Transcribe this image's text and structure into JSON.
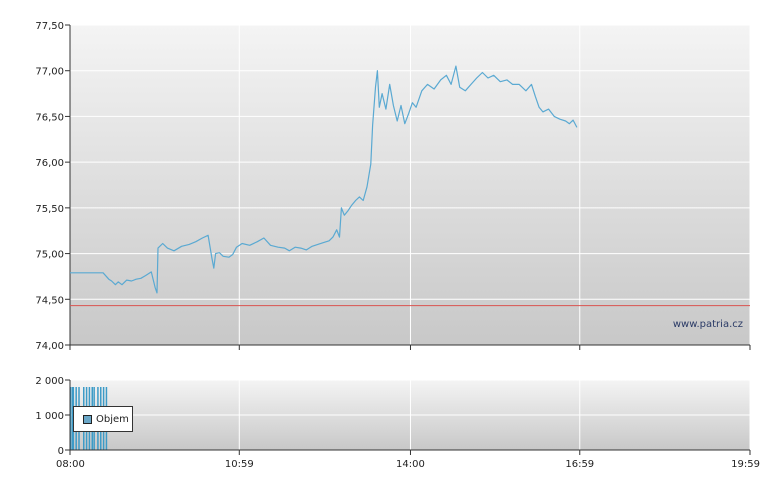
{
  "chart_data": [
    {
      "type": "line",
      "title": "",
      "xlabel": "",
      "ylabel": "",
      "ylim": [
        74.0,
        77.5
      ],
      "y_ticks": [
        "77,50",
        "77,00",
        "76,50",
        "76,00",
        "75,50",
        "75,00",
        "74,50",
        "74,00"
      ],
      "y_tick_values": [
        77.5,
        77.0,
        76.5,
        76.0,
        75.5,
        75.0,
        74.5,
        74.0
      ],
      "x_ticks": [
        "08:00",
        "10:59",
        "14:00",
        "16:59",
        "19:59"
      ],
      "x_tick_minutes": [
        480,
        659,
        840,
        1019,
        1199
      ],
      "xlim_minutes": [
        480,
        1199
      ],
      "grid": true,
      "reference_line": {
        "value": 74.43,
        "color": "#d9534f"
      },
      "watermark": "www.patria.cz",
      "line_color": "#5aa9d2",
      "series": [
        {
          "points": [
            [
              480,
              74.79
            ],
            [
              500,
              74.79
            ],
            [
              515,
              74.79
            ],
            [
              521,
              74.72
            ],
            [
              524,
              74.7
            ],
            [
              528,
              74.66
            ],
            [
              531,
              74.69
            ],
            [
              535,
              74.66
            ],
            [
              540,
              74.71
            ],
            [
              545,
              74.7
            ],
            [
              550,
              74.72
            ],
            [
              555,
              74.73
            ],
            [
              560,
              74.76
            ],
            [
              566,
              74.8
            ],
            [
              570,
              74.63
            ],
            [
              572,
              74.57
            ],
            [
              573,
              75.06
            ],
            [
              578,
              75.11
            ],
            [
              583,
              75.06
            ],
            [
              590,
              75.03
            ],
            [
              598,
              75.08
            ],
            [
              606,
              75.1
            ],
            [
              613,
              75.13
            ],
            [
              620,
              75.17
            ],
            [
              626,
              75.2
            ],
            [
              630,
              74.95
            ],
            [
              632,
              74.84
            ],
            [
              634,
              75.0
            ],
            [
              638,
              75.01
            ],
            [
              642,
              74.97
            ],
            [
              648,
              74.96
            ],
            [
              652,
              74.99
            ],
            [
              656,
              75.07
            ],
            [
              662,
              75.11
            ],
            [
              670,
              75.09
            ],
            [
              678,
              75.13
            ],
            [
              685,
              75.17
            ],
            [
              692,
              75.09
            ],
            [
              700,
              75.07
            ],
            [
              707,
              75.06
            ],
            [
              712,
              75.03
            ],
            [
              718,
              75.07
            ],
            [
              724,
              75.06
            ],
            [
              730,
              75.04
            ],
            [
              736,
              75.08
            ],
            [
              742,
              75.1
            ],
            [
              748,
              75.12
            ],
            [
              754,
              75.14
            ],
            [
              758,
              75.18
            ],
            [
              762,
              75.26
            ],
            [
              765,
              75.18
            ],
            [
              767,
              75.5
            ],
            [
              770,
              75.42
            ],
            [
              774,
              75.47
            ],
            [
              778,
              75.53
            ],
            [
              782,
              75.58
            ],
            [
              786,
              75.62
            ],
            [
              790,
              75.58
            ],
            [
              794,
              75.73
            ],
            [
              798,
              75.98
            ],
            [
              800,
              76.4
            ],
            [
              803,
              76.82
            ],
            [
              805,
              77.0
            ],
            [
              807,
              76.6
            ],
            [
              810,
              76.75
            ],
            [
              814,
              76.58
            ],
            [
              818,
              76.85
            ],
            [
              822,
              76.62
            ],
            [
              826,
              76.45
            ],
            [
              830,
              76.62
            ],
            [
              834,
              76.42
            ],
            [
              838,
              76.53
            ],
            [
              842,
              76.65
            ],
            [
              846,
              76.6
            ],
            [
              852,
              76.78
            ],
            [
              858,
              76.85
            ],
            [
              865,
              76.8
            ],
            [
              872,
              76.9
            ],
            [
              878,
              76.95
            ],
            [
              883,
              76.85
            ],
            [
              888,
              77.05
            ],
            [
              892,
              76.82
            ],
            [
              898,
              76.78
            ],
            [
              904,
              76.85
            ],
            [
              910,
              76.92
            ],
            [
              916,
              76.98
            ],
            [
              922,
              76.92
            ],
            [
              928,
              76.95
            ],
            [
              935,
              76.88
            ],
            [
              942,
              76.9
            ],
            [
              948,
              76.85
            ],
            [
              955,
              76.85
            ],
            [
              962,
              76.78
            ],
            [
              968,
              76.85
            ],
            [
              972,
              76.72
            ],
            [
              976,
              76.6
            ],
            [
              980,
              76.55
            ],
            [
              986,
              76.58
            ],
            [
              992,
              76.5
            ],
            [
              998,
              76.47
            ],
            [
              1004,
              76.45
            ],
            [
              1008,
              76.42
            ],
            [
              1012,
              76.46
            ],
            [
              1016,
              76.38
            ]
          ]
        }
      ]
    },
    {
      "type": "bar",
      "title": "",
      "xlabel": "",
      "ylabel": "",
      "ylim": [
        0,
        2000
      ],
      "y_ticks": [
        "2 000",
        "1 000",
        "0"
      ],
      "y_tick_values": [
        2000,
        1000,
        0
      ],
      "x_ticks": [
        "08:00",
        "10:59",
        "14:00",
        "16:59",
        "19:59"
      ],
      "x_tick_minutes": [
        480,
        659,
        840,
        1019,
        1199
      ],
      "xlim_minutes": [
        480,
        1199
      ],
      "grid": true,
      "legend": {
        "entries": [
          "Objem"
        ],
        "placement": "left"
      },
      "bar_color": "#3d9bc7",
      "series": [
        {
          "name": "Objem",
          "x_minutes": [
            480,
            482,
            483,
            486,
            489,
            494,
            497,
            500,
            503,
            505,
            509,
            512,
            515,
            518
          ],
          "values": [
            1800,
            1800,
            1800,
            1800,
            1800,
            1800,
            1800,
            1800,
            1800,
            1800,
            1800,
            1800,
            1800,
            1800
          ]
        }
      ]
    }
  ]
}
